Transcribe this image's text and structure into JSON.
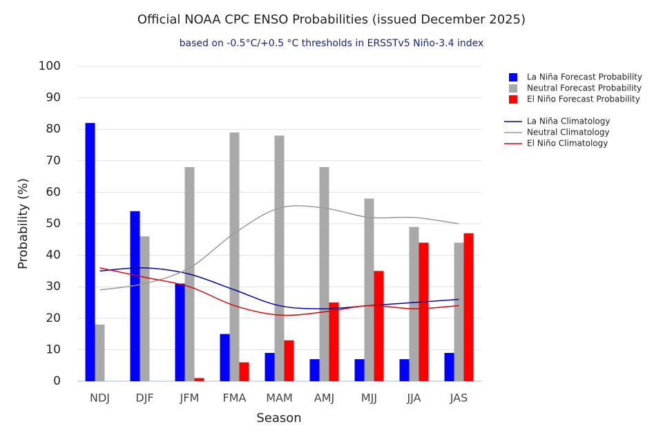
{
  "chart_data": {
    "type": "bar",
    "title": "Official NOAA CPC ENSO Probabilities (issued December 2025)",
    "subtitle": "based on -0.5°C/+0.5 °C thresholds in ERSSTv5 Niño-3.4 index",
    "xlabel": "Season",
    "ylabel": "Probability (%)",
    "categories": [
      "NDJ",
      "DJF",
      "JFM",
      "FMA",
      "MAM",
      "AMJ",
      "MJJ",
      "JJA",
      "JAS"
    ],
    "ylim": [
      0,
      100
    ],
    "yticks": [
      0,
      10,
      20,
      30,
      40,
      50,
      60,
      70,
      80,
      90,
      100
    ],
    "grid": true,
    "series": [
      {
        "name": "La Niña Forecast Probability",
        "kind": "bar",
        "color": "#0000ff",
        "values": [
          82,
          54,
          31,
          15,
          9,
          7,
          7,
          7,
          9
        ]
      },
      {
        "name": "Neutral Forecast Probability",
        "kind": "bar",
        "color": "#a9a9a9",
        "values": [
          18,
          46,
          68,
          79,
          78,
          68,
          58,
          49,
          44
        ]
      },
      {
        "name": "El Niño Forecast Probability",
        "kind": "bar",
        "color": "#ff0000",
        "values": [
          0,
          0,
          1,
          6,
          13,
          25,
          35,
          44,
          47
        ]
      },
      {
        "name": "La Niña Climatology",
        "kind": "line",
        "color": "#0000aa",
        "values": [
          35,
          36,
          34,
          29,
          24,
          23,
          24,
          25,
          26
        ]
      },
      {
        "name": "Neutral Climatology",
        "kind": "line",
        "color": "#999999",
        "values": [
          29,
          31,
          36,
          47,
          55,
          55,
          52,
          52,
          50
        ]
      },
      {
        "name": "El Niño Climatology",
        "kind": "line",
        "color": "#dd0000",
        "values": [
          36,
          33,
          30,
          24,
          21,
          22,
          24,
          23,
          24
        ]
      }
    ]
  }
}
